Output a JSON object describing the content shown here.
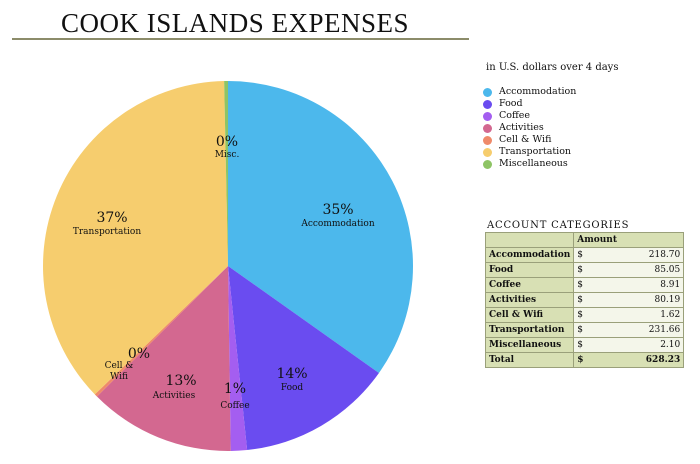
{
  "title": "COOK ISLANDS EXPENSES",
  "subtitle": "in U.S. dollars over 4 days",
  "chart_data": {
    "type": "pie",
    "title": "COOK ISLANDS EXPENSES",
    "subtitle": "in U.S. dollars over 4 days",
    "legend_position": "right",
    "slices": [
      {
        "label": "Accommodation",
        "value": 218.7,
        "pct_label": "35%",
        "color": "#4cb8ec",
        "slice_label": "Accommodation"
      },
      {
        "label": "Food",
        "value": 85.05,
        "pct_label": "14%",
        "color": "#6a4cf0",
        "slice_label": "Food"
      },
      {
        "label": "Coffee",
        "value": 8.91,
        "pct_label": "1%",
        "color": "#a45ef0",
        "slice_label": "Coffee"
      },
      {
        "label": "Activities",
        "value": 80.19,
        "pct_label": "13%",
        "color": "#d36890",
        "slice_label": "Activities"
      },
      {
        "label": "Cell & Wifi",
        "value": 1.62,
        "pct_label": "0%",
        "color": "#ef8a6a",
        "slice_label": "Cell & Wifi"
      },
      {
        "label": "Transportation",
        "value": 231.66,
        "pct_label": "37%",
        "color": "#f6cd6e",
        "slice_label": "Transportation"
      },
      {
        "label": "Miscellaneous",
        "value": 2.1,
        "pct_label": "0%",
        "color": "#8ec465",
        "slice_label": "Misc."
      }
    ]
  },
  "table": {
    "title": "ACCOUNT CATEGORIES",
    "header": "Amount",
    "currency": "$",
    "rows": [
      {
        "label": "Accommodation",
        "amount": "218.70"
      },
      {
        "label": "Food",
        "amount": "85.05"
      },
      {
        "label": "Coffee",
        "amount": "8.91"
      },
      {
        "label": "Activities",
        "amount": "80.19"
      },
      {
        "label": "Cell & Wifi",
        "amount": "1.62"
      },
      {
        "label": "Transportation",
        "amount": "231.66"
      },
      {
        "label": "Miscellaneous",
        "amount": "2.10"
      }
    ],
    "total_label": "Total",
    "total_amount": "628.23"
  }
}
